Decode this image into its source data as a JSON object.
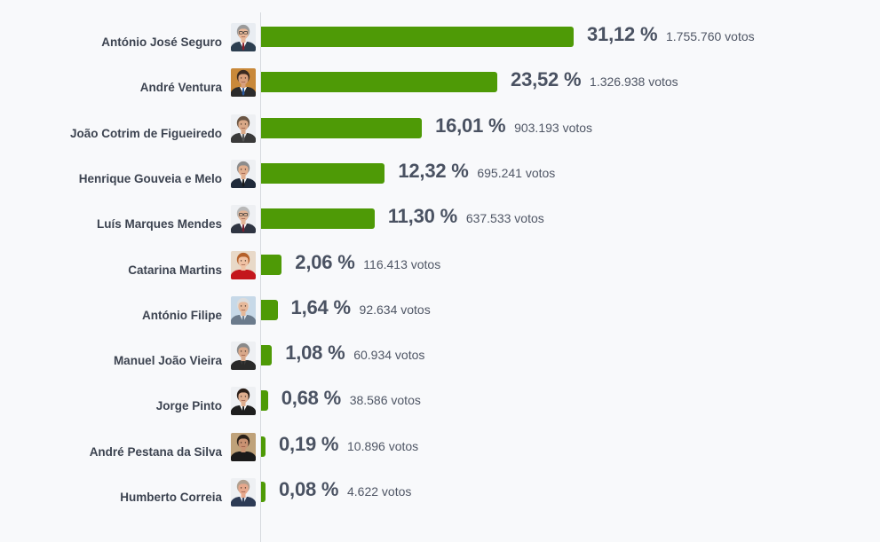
{
  "chart_data": {
    "type": "bar",
    "orientation": "horizontal",
    "grid": false,
    "xlim": [
      0,
      31.12
    ],
    "candidates": [
      {
        "name": "António José Seguro",
        "percent": 31.12,
        "percent_label": "31,12 %",
        "votes_label": "1.755.760 votos",
        "avatar": {
          "icon": "candidate-photo-icon",
          "skin": "#e8b89a",
          "hair": "#9a9a9a",
          "suit": "#2c3e50",
          "shirt": "#ffffff",
          "tie": "#8a1f2b",
          "bg": "#e9edf2",
          "glasses": true
        }
      },
      {
        "name": "André Ventura",
        "percent": 23.52,
        "percent_label": "23,52 %",
        "votes_label": "1.326.938 votos",
        "avatar": {
          "icon": "candidate-photo-icon",
          "skin": "#d9a07c",
          "hair": "#3b2a20",
          "suit": "#2b2b2b",
          "shirt": "#ffffff",
          "tie": "#2a5aa0",
          "bg": "#c9893a",
          "glasses": false
        }
      },
      {
        "name": "João Cotrim de Figueiredo",
        "percent": 16.01,
        "percent_label": "16,01 %",
        "votes_label": "903.193 votos",
        "avatar": {
          "icon": "candidate-photo-icon",
          "skin": "#d9a887",
          "hair": "#6b5645",
          "suit": "#3a3a3a",
          "shirt": "#e8e8e8",
          "tie": "#555555",
          "bg": "#eef0f3",
          "glasses": false
        }
      },
      {
        "name": "Henrique Gouveia e Melo",
        "percent": 12.32,
        "percent_label": "12,32 %",
        "votes_label": "695.241 votos",
        "avatar": {
          "icon": "candidate-photo-icon",
          "skin": "#e0ae8e",
          "hair": "#8c8c8c",
          "suit": "#1f2a3a",
          "shirt": "#ffffff",
          "tie": "#1a1a1a",
          "bg": "#eef0f3",
          "glasses": false
        }
      },
      {
        "name": "Luís Marques Mendes",
        "percent": 11.3,
        "percent_label": "11,30 %",
        "votes_label": "637.533 votos",
        "avatar": {
          "icon": "candidate-photo-icon",
          "skin": "#e3b597",
          "hair": "#b8b8b8",
          "suit": "#2f3542",
          "shirt": "#ffffff",
          "tie": "#7a2030",
          "bg": "#eef0f3",
          "glasses": true
        }
      },
      {
        "name": "Catarina Martins",
        "percent": 2.06,
        "percent_label": "2,06 %",
        "votes_label": "116.413 votos",
        "avatar": {
          "icon": "candidate-photo-icon",
          "skin": "#f0c2a4",
          "hair": "#b5602a",
          "suit": "#c4161c",
          "shirt": "#c4161c",
          "tie": "#c4161c",
          "bg": "#e8d9c8",
          "glasses": false
        }
      },
      {
        "name": "António Filipe",
        "percent": 1.64,
        "percent_label": "1,64 %",
        "votes_label": "92.634 votos",
        "avatar": {
          "icon": "candidate-photo-icon",
          "skin": "#e6b899",
          "hair": "#dcdcdc",
          "suit": "#6b7b8c",
          "shirt": "#dfe6ee",
          "tie": "#6b7b8c",
          "bg": "#c7d9e8",
          "glasses": false
        }
      },
      {
        "name": "Manuel João Vieira",
        "percent": 1.08,
        "percent_label": "1,08 %",
        "votes_label": "60.934 votos",
        "avatar": {
          "icon": "candidate-photo-icon",
          "skin": "#d8a88a",
          "hair": "#8a8a8a",
          "suit": "#2a2a2a",
          "shirt": "#3a3a3a",
          "tie": "#2a2a2a",
          "bg": "#eef0f3",
          "glasses": false
        }
      },
      {
        "name": "Jorge Pinto",
        "percent": 0.68,
        "percent_label": "0,68 %",
        "votes_label": "38.586 votos",
        "avatar": {
          "icon": "candidate-photo-icon",
          "skin": "#dfae8f",
          "hair": "#2a1e18",
          "suit": "#1e1e1e",
          "shirt": "#ffffff",
          "tie": "#1e1e1e",
          "bg": "#eef0f3",
          "glasses": false
        }
      },
      {
        "name": "André Pestana da Silva",
        "percent": 0.19,
        "percent_label": "0,19 %",
        "votes_label": "10.896 votos",
        "avatar": {
          "icon": "candidate-photo-icon",
          "skin": "#c99272",
          "hair": "#2a2018",
          "suit": "#1a1a1a",
          "shirt": "#1a1a1a",
          "tie": "#1a1a1a",
          "bg": "#bfa27a",
          "glasses": false
        }
      },
      {
        "name": "Humberto Correia",
        "percent": 0.08,
        "percent_label": "0,08 %",
        "votes_label": "4.622 votos",
        "avatar": {
          "icon": "candidate-photo-icon",
          "skin": "#e6a88c",
          "hair": "#b0a090",
          "suit": "#2d3b55",
          "shirt": "#dde4ee",
          "tie": "#2d3b55",
          "bg": "#eef0f3",
          "glasses": false
        }
      }
    ],
    "colors": {
      "bar": "#4e9a06",
      "axis": "#d6d9de",
      "background": "#f8f9fb"
    }
  }
}
